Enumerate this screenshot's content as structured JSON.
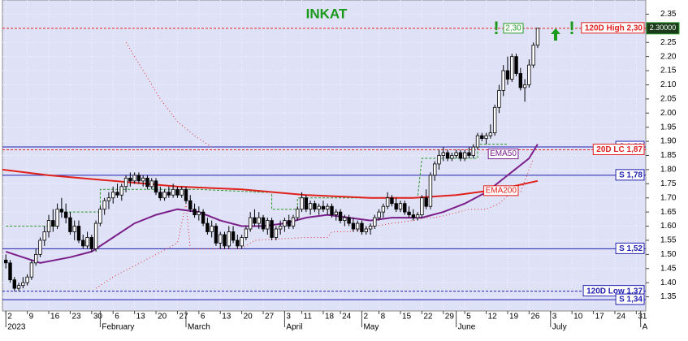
{
  "chart_data": {
    "type": "candlestick",
    "title": "INKAT",
    "grid": true,
    "xlim": [
      -0.8,
      149.2
    ],
    "ylim": [
      1.3,
      2.4
    ],
    "yticks": [
      1.35,
      {
        "value": 1.4,
        "label": "1.40"
      },
      1.45,
      {
        "value": 1.5,
        "label": "1.50"
      },
      1.55,
      {
        "value": 1.6,
        "label": "1.60"
      },
      1.65,
      {
        "value": 1.7,
        "label": "1.70"
      },
      1.75,
      {
        "value": 1.8,
        "label": "1.80"
      },
      1.85,
      {
        "value": 1.9,
        "label": "1.90"
      },
      1.95,
      {
        "value": 2.0,
        "label": "2.00"
      },
      2.05,
      {
        "value": 2.1,
        "label": "2.10"
      },
      2.15,
      {
        "value": 2.2,
        "label": "2.20"
      },
      2.25,
      {
        "value": 2.3,
        "label": "2.30"
      },
      2.35
    ],
    "xticks": [
      {
        "value": 0,
        "label": "2"
      },
      {
        "value": 5,
        "label": "9"
      },
      {
        "value": 10,
        "label": "16"
      },
      {
        "value": 15,
        "label": "23"
      },
      {
        "value": 20,
        "label": "30"
      },
      {
        "value": 25,
        "label": "6"
      },
      {
        "value": 30,
        "label": "13"
      },
      {
        "value": 35,
        "label": "20"
      },
      {
        "value": 40,
        "label": "27"
      },
      {
        "value": 45,
        "label": "6"
      },
      {
        "value": 50,
        "label": "13"
      },
      {
        "value": 55,
        "label": "20"
      },
      {
        "value": 60,
        "label": "27"
      },
      {
        "value": 65,
        "label": "3"
      },
      {
        "value": 69,
        "label": "11"
      },
      {
        "value": 74,
        "label": "18"
      },
      {
        "value": 78,
        "label": "24"
      },
      {
        "value": 83,
        "label": "2"
      },
      {
        "value": 87,
        "label": "8"
      },
      {
        "value": 92,
        "label": "15"
      },
      {
        "value": 97,
        "label": "22"
      },
      {
        "value": 102,
        "label": "29"
      },
      {
        "value": 107,
        "label": "5"
      },
      {
        "value": 112,
        "label": "12"
      },
      {
        "value": 117,
        "label": "19"
      },
      {
        "value": 122,
        "label": "26"
      },
      {
        "value": 127,
        "label": "3"
      },
      {
        "value": 132,
        "label": "10"
      },
      {
        "value": 137,
        "label": "17"
      },
      {
        "value": 142,
        "label": "24"
      },
      {
        "value": 147,
        "label": "31"
      }
    ],
    "month_ticks": [
      {
        "value": 0,
        "label": "2023"
      },
      {
        "value": 22,
        "label": "February"
      },
      {
        "value": 42,
        "label": "March"
      },
      {
        "value": 65,
        "label": "April"
      },
      {
        "value": 83,
        "label": "May"
      },
      {
        "value": 105,
        "label": "June"
      },
      {
        "value": 127,
        "label": "July"
      },
      {
        "value": 148,
        "label": "A"
      }
    ],
    "up_color": "#ffffff",
    "down_color": "#000000",
    "ohlc": [
      [
        1.48,
        1.5,
        1.45,
        1.47
      ],
      [
        1.47,
        1.48,
        1.4,
        1.41
      ],
      [
        1.41,
        1.42,
        1.37,
        1.38
      ],
      [
        1.38,
        1.4,
        1.37,
        1.39
      ],
      [
        1.39,
        1.42,
        1.38,
        1.4
      ],
      [
        1.4,
        1.43,
        1.39,
        1.42
      ],
      [
        1.42,
        1.48,
        1.41,
        1.47
      ],
      [
        1.47,
        1.52,
        1.46,
        1.5
      ],
      [
        1.5,
        1.56,
        1.49,
        1.55
      ],
      [
        1.55,
        1.6,
        1.53,
        1.58
      ],
      [
        1.58,
        1.64,
        1.56,
        1.62
      ],
      [
        1.62,
        1.66,
        1.58,
        1.6
      ],
      [
        1.6,
        1.68,
        1.59,
        1.66
      ],
      [
        1.66,
        1.7,
        1.63,
        1.65
      ],
      [
        1.65,
        1.68,
        1.61,
        1.63
      ],
      [
        1.63,
        1.65,
        1.57,
        1.58
      ],
      [
        1.58,
        1.62,
        1.55,
        1.6
      ],
      [
        1.6,
        1.62,
        1.54,
        1.55
      ],
      [
        1.55,
        1.57,
        1.52,
        1.53
      ],
      [
        1.53,
        1.58,
        1.52,
        1.56
      ],
      [
        1.56,
        1.57,
        1.51,
        1.52
      ],
      [
        1.52,
        1.62,
        1.51,
        1.61
      ],
      [
        1.61,
        1.67,
        1.6,
        1.66
      ],
      [
        1.66,
        1.7,
        1.64,
        1.69
      ],
      [
        1.69,
        1.72,
        1.66,
        1.7
      ],
      [
        1.7,
        1.74,
        1.68,
        1.72
      ],
      [
        1.72,
        1.75,
        1.7,
        1.71
      ],
      [
        1.71,
        1.75,
        1.69,
        1.74
      ],
      [
        1.74,
        1.78,
        1.72,
        1.77
      ],
      [
        1.77,
        1.79,
        1.74,
        1.76
      ],
      [
        1.76,
        1.79,
        1.75,
        1.78
      ],
      [
        1.78,
        1.79,
        1.75,
        1.76
      ],
      [
        1.76,
        1.78,
        1.74,
        1.77
      ],
      [
        1.77,
        1.78,
        1.73,
        1.74
      ],
      [
        1.74,
        1.77,
        1.73,
        1.76
      ],
      [
        1.76,
        1.77,
        1.71,
        1.72
      ],
      [
        1.72,
        1.74,
        1.69,
        1.7
      ],
      [
        1.7,
        1.73,
        1.69,
        1.72
      ],
      [
        1.72,
        1.74,
        1.7,
        1.71
      ],
      [
        1.71,
        1.75,
        1.7,
        1.73
      ],
      [
        1.73,
        1.74,
        1.7,
        1.71
      ],
      [
        1.71,
        1.74,
        1.7,
        1.73
      ],
      [
        1.73,
        1.74,
        1.68,
        1.69
      ],
      [
        1.69,
        1.71,
        1.65,
        1.66
      ],
      [
        1.66,
        1.68,
        1.63,
        1.64
      ],
      [
        1.64,
        1.67,
        1.62,
        1.65
      ],
      [
        1.65,
        1.66,
        1.6,
        1.61
      ],
      [
        1.61,
        1.63,
        1.57,
        1.58
      ],
      [
        1.58,
        1.62,
        1.56,
        1.6
      ],
      [
        1.6,
        1.61,
        1.53,
        1.54
      ],
      [
        1.54,
        1.58,
        1.52,
        1.57
      ],
      [
        1.57,
        1.58,
        1.52,
        1.53
      ],
      [
        1.53,
        1.6,
        1.52,
        1.58
      ],
      [
        1.58,
        1.6,
        1.54,
        1.55
      ],
      [
        1.55,
        1.57,
        1.52,
        1.53
      ],
      [
        1.53,
        1.57,
        1.52,
        1.56
      ],
      [
        1.56,
        1.6,
        1.55,
        1.59
      ],
      [
        1.59,
        1.65,
        1.58,
        1.63
      ],
      [
        1.63,
        1.66,
        1.6,
        1.61
      ],
      [
        1.61,
        1.65,
        1.59,
        1.63
      ],
      [
        1.63,
        1.64,
        1.58,
        1.59
      ],
      [
        1.59,
        1.63,
        1.57,
        1.62
      ],
      [
        1.62,
        1.63,
        1.55,
        1.56
      ],
      [
        1.56,
        1.6,
        1.55,
        1.59
      ],
      [
        1.59,
        1.62,
        1.57,
        1.6
      ],
      [
        1.6,
        1.63,
        1.58,
        1.62
      ],
      [
        1.62,
        1.64,
        1.59,
        1.6
      ],
      [
        1.6,
        1.64,
        1.59,
        1.63
      ],
      [
        1.63,
        1.67,
        1.62,
        1.66
      ],
      [
        1.66,
        1.72,
        1.65,
        1.7
      ],
      [
        1.7,
        1.71,
        1.65,
        1.66
      ],
      [
        1.66,
        1.69,
        1.64,
        1.68
      ],
      [
        1.68,
        1.69,
        1.65,
        1.66
      ],
      [
        1.66,
        1.68,
        1.64,
        1.67
      ],
      [
        1.67,
        1.69,
        1.65,
        1.66
      ],
      [
        1.66,
        1.68,
        1.64,
        1.67
      ],
      [
        1.67,
        1.68,
        1.63,
        1.64
      ],
      [
        1.64,
        1.66,
        1.62,
        1.65
      ],
      [
        1.65,
        1.66,
        1.61,
        1.62
      ],
      [
        1.62,
        1.64,
        1.6,
        1.63
      ],
      [
        1.63,
        1.64,
        1.6,
        1.61
      ],
      [
        1.61,
        1.63,
        1.58,
        1.59
      ],
      [
        1.59,
        1.62,
        1.58,
        1.61
      ],
      [
        1.61,
        1.62,
        1.57,
        1.58
      ],
      [
        1.58,
        1.6,
        1.57,
        1.59
      ],
      [
        1.59,
        1.61,
        1.57,
        1.6
      ],
      [
        1.6,
        1.64,
        1.59,
        1.63
      ],
      [
        1.63,
        1.66,
        1.62,
        1.65
      ],
      [
        1.65,
        1.68,
        1.63,
        1.67
      ],
      [
        1.67,
        1.72,
        1.66,
        1.7
      ],
      [
        1.7,
        1.71,
        1.67,
        1.68
      ],
      [
        1.68,
        1.7,
        1.65,
        1.66
      ],
      [
        1.66,
        1.69,
        1.65,
        1.68
      ],
      [
        1.68,
        1.69,
        1.64,
        1.65
      ],
      [
        1.65,
        1.67,
        1.63,
        1.64
      ],
      [
        1.64,
        1.66,
        1.62,
        1.63
      ],
      [
        1.63,
        1.65,
        1.62,
        1.64
      ],
      [
        1.64,
        1.71,
        1.63,
        1.7
      ],
      [
        1.7,
        1.73,
        1.66,
        1.67
      ],
      [
        1.67,
        1.79,
        1.66,
        1.78
      ],
      [
        1.78,
        1.83,
        1.76,
        1.82
      ],
      [
        1.82,
        1.87,
        1.8,
        1.85
      ],
      [
        1.85,
        1.88,
        1.83,
        1.86
      ],
      [
        1.86,
        1.87,
        1.83,
        1.84
      ],
      [
        1.84,
        1.86,
        1.83,
        1.85
      ],
      [
        1.85,
        1.87,
        1.84,
        1.86
      ],
      [
        1.86,
        1.87,
        1.83,
        1.84
      ],
      [
        1.84,
        1.87,
        1.83,
        1.86
      ],
      [
        1.86,
        1.88,
        1.84,
        1.85
      ],
      [
        1.85,
        1.89,
        1.84,
        1.88
      ],
      [
        1.88,
        1.93,
        1.87,
        1.92
      ],
      [
        1.92,
        1.93,
        1.9,
        1.91
      ],
      [
        1.91,
        1.93,
        1.89,
        1.92
      ],
      [
        1.92,
        1.96,
        1.91,
        1.93
      ],
      [
        1.93,
        2.03,
        1.92,
        2.02
      ],
      [
        2.02,
        2.1,
        2.0,
        2.08
      ],
      [
        2.08,
        2.17,
        2.06,
        2.15
      ],
      [
        2.15,
        2.2,
        2.1,
        2.12
      ],
      [
        2.12,
        2.21,
        2.11,
        2.2
      ],
      [
        2.2,
        2.21,
        2.13,
        2.14
      ],
      [
        2.14,
        2.16,
        2.08,
        2.09
      ],
      [
        2.09,
        2.12,
        2.04,
        2.1
      ],
      [
        2.1,
        2.19,
        2.09,
        2.17
      ],
      [
        2.17,
        2.25,
        2.16,
        2.24
      ],
      [
        2.24,
        2.3,
        2.23,
        2.3
      ]
    ],
    "series": [
      {
        "name": "EMA50",
        "color": "#7a1f8a",
        "x": [
          0,
          8,
          15,
          20,
          25,
          30,
          35,
          40,
          45,
          50,
          55,
          60,
          65,
          70,
          75,
          80,
          85,
          90,
          97,
          102,
          107,
          112,
          117,
          122,
          124
        ],
        "values": [
          1.51,
          1.47,
          1.49,
          1.51,
          1.56,
          1.61,
          1.64,
          1.66,
          1.65,
          1.62,
          1.6,
          1.6,
          1.61,
          1.63,
          1.64,
          1.63,
          1.62,
          1.63,
          1.63,
          1.65,
          1.68,
          1.72,
          1.78,
          1.84,
          1.89
        ]
      },
      {
        "name": "EMA200",
        "color": "#e0201a",
        "x": [
          -0.8,
          10,
          25,
          40,
          55,
          70,
          85,
          95,
          105,
          115,
          124
        ],
        "values": [
          1.8,
          1.78,
          1.76,
          1.74,
          1.73,
          1.71,
          1.7,
          1.7,
          1.71,
          1.73,
          1.76
        ]
      }
    ],
    "stops": [
      {
        "color": "#e03030",
        "x": [
          21,
          25,
          30,
          35,
          40,
          42,
          43,
          55,
          58,
          70,
          75,
          76,
          80,
          86,
          90,
          95,
          98,
          100,
          103,
          108,
          112,
          115,
          118,
          120,
          123
        ],
        "values": [
          1.38,
          1.42,
          1.46,
          1.5,
          1.54,
          1.68,
          1.52,
          1.52,
          1.55,
          1.56,
          1.56,
          1.58,
          1.58,
          1.6,
          1.61,
          1.62,
          1.63,
          1.63,
          1.64,
          1.66,
          1.66,
          1.68,
          1.72,
          1.72,
          1.84
        ]
      },
      {
        "color": "#e03030",
        "x": [
          28,
          32,
          36,
          40,
          44,
          48
        ],
        "values": [
          2.25,
          2.15,
          2.05,
          1.97,
          1.92,
          1.88
        ]
      },
      {
        "color": "#2a9a2a",
        "x": [
          0,
          12,
          12,
          22,
          22,
          45,
          60,
          62,
          62,
          68,
          68,
          96,
          97,
          110,
          110,
          117
        ],
        "values": [
          1.6,
          1.6,
          1.65,
          1.65,
          1.73,
          1.73,
          1.72,
          1.72,
          1.66,
          1.66,
          1.7,
          1.7,
          1.84,
          1.84,
          1.89,
          1.89
        ]
      }
    ],
    "levels": [
      {
        "label": "120D High 2,30",
        "value": 2.3,
        "color": "#e02020",
        "dash": true
      },
      {
        "label": "S 1,88",
        "value": 1.88,
        "color": "#2020b0",
        "dash": false
      },
      {
        "label": "20D LC 1,87",
        "value": 1.87,
        "color": "#e02020",
        "dash": true
      },
      {
        "label": "S 1,78",
        "value": 1.78,
        "color": "#2020b0",
        "dash": false
      },
      {
        "label": "S 1,52",
        "value": 1.52,
        "color": "#2020b0",
        "dash": false
      },
      {
        "label": "120D Low 1,37",
        "value": 1.37,
        "color": "#2020b0",
        "dash": true
      },
      {
        "label": "S 1,34",
        "value": 1.34,
        "color": "#2020b0",
        "dash": false
      }
    ],
    "annotations": [
      {
        "text": "2,30",
        "value": 2.3,
        "color": "#2a9a2a"
      }
    ],
    "last_price": {
      "value": 2.3,
      "label": "2.30000"
    }
  }
}
